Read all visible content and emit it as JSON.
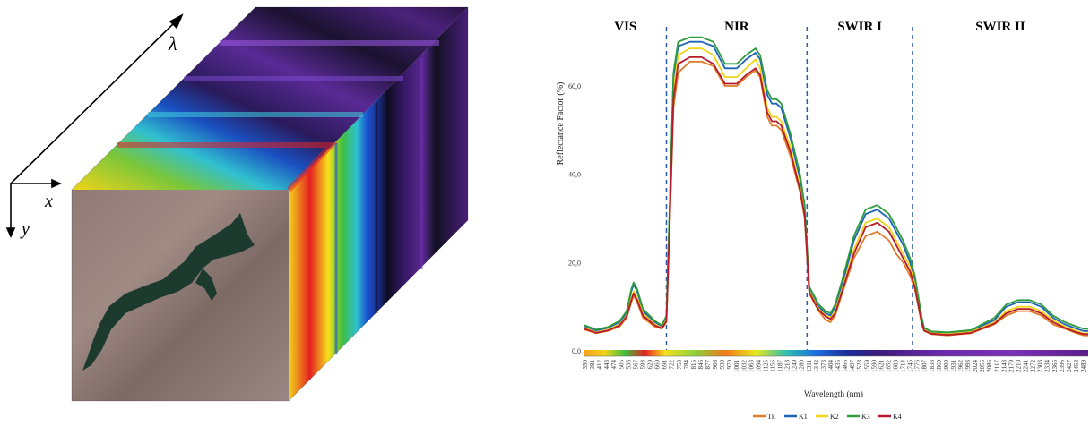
{
  "cube": {
    "axis_x": "x",
    "axis_y": "y",
    "axis_lambda": "λ"
  },
  "chart_data": {
    "type": "line",
    "title": "",
    "xlabel": "Wavelength  (nm)",
    "ylabel": "Reflectance Factor (%)",
    "ylim": [
      0,
      75
    ],
    "y_ticks": [
      {
        "value": 0,
        "label": "0,0"
      },
      {
        "value": 20,
        "label": "20,0"
      },
      {
        "value": 40,
        "label": "40,0"
      },
      {
        "value": 60,
        "label": "60,0"
      }
    ],
    "xlim": [
      350,
      2500
    ],
    "x_tick_labels": [
      "350",
      "381",
      "412",
      "443",
      "474",
      "505",
      "536",
      "567",
      "598",
      "629",
      "660",
      "691",
      "722",
      "753",
      "784",
      "815",
      "846",
      "877",
      "908",
      "939",
      "970",
      "1001",
      "1032",
      "1063",
      "1094",
      "1125",
      "1156",
      "1187",
      "1218",
      "1249",
      "1280",
      "1311",
      "1342",
      "1373",
      "1404",
      "1435",
      "1466",
      "1497",
      "1528",
      "1559",
      "1590",
      "1621",
      "1652",
      "1683",
      "1714",
      "1745",
      "1776",
      "1807",
      "1838",
      "1869",
      "1900",
      "1931",
      "1962",
      "1993",
      "2024",
      "2055",
      "2086",
      "2117",
      "2148",
      "2179",
      "2210",
      "2241",
      "2272",
      "2303",
      "2334",
      "2365",
      "2396",
      "2427",
      "2458",
      "2489"
    ],
    "regions": [
      {
        "label": "VIS",
        "start": 350,
        "end": 700
      },
      {
        "label": "NIR",
        "start": 700,
        "end": 1300
      },
      {
        "label": "SWIR I",
        "start": 1300,
        "end": 1750
      },
      {
        "label": "SWIR II",
        "start": 1750,
        "end": 2500
      }
    ],
    "boundaries": [
      700,
      1300,
      1750
    ],
    "grid": false,
    "legend_position": "bottom-center",
    "x": [
      350,
      400,
      450,
      500,
      530,
      550,
      560,
      575,
      600,
      650,
      680,
      700,
      715,
      730,
      750,
      800,
      850,
      900,
      950,
      1000,
      1040,
      1080,
      1100,
      1130,
      1150,
      1170,
      1190,
      1230,
      1270,
      1290,
      1310,
      1350,
      1380,
      1400,
      1420,
      1450,
      1500,
      1550,
      1600,
      1650,
      1680,
      1710,
      1740,
      1760,
      1790,
      1800,
      1830,
      1900,
      2000,
      2100,
      2150,
      2200,
      2250,
      2300,
      2350,
      2400,
      2450,
      2480,
      2500
    ],
    "series": [
      {
        "name": "Tk",
        "color": "#e07b28",
        "values": [
          4.8,
          4.0,
          4.5,
          5.5,
          7.5,
          11.0,
          12.5,
          11.0,
          7.5,
          5.5,
          5.0,
          6.5,
          30,
          55,
          63,
          65.5,
          65.5,
          64.5,
          60,
          60,
          62,
          63.5,
          62,
          53,
          51,
          51,
          50,
          44,
          36,
          30,
          13,
          9,
          7,
          6.5,
          8,
          13,
          21,
          26,
          27,
          25,
          22,
          20,
          17,
          14,
          6,
          4.5,
          3.8,
          3.5,
          4,
          6,
          8,
          9,
          9,
          8,
          6,
          5,
          4,
          3.5,
          3.5
        ]
      },
      {
        "name": "K1",
        "color": "#1f63b5",
        "values": [
          5.6,
          4.6,
          5.2,
          6.5,
          8.5,
          13.5,
          15.0,
          13.5,
          9.0,
          6.5,
          5.6,
          7.5,
          34,
          62,
          69,
          70,
          70,
          69,
          64,
          64,
          66,
          67.5,
          66,
          58,
          56,
          56,
          55,
          48,
          39,
          32,
          14,
          10,
          8.5,
          8,
          10,
          15,
          25,
          31,
          32,
          30,
          27,
          24,
          20,
          16,
          7,
          5,
          4.2,
          4,
          4.5,
          7,
          10,
          11,
          11,
          10,
          7.5,
          6,
          5,
          4.5,
          4.5
        ]
      },
      {
        "name": "K2",
        "color": "#f2d419",
        "values": [
          5.2,
          4.2,
          4.8,
          6.0,
          8.0,
          12.0,
          13.5,
          12.0,
          8.5,
          6.0,
          5.2,
          7.0,
          32,
          59,
          67,
          68.5,
          68.5,
          67,
          62,
          62,
          64,
          66,
          64,
          55,
          53,
          53,
          52,
          46,
          37,
          31,
          13.5,
          9.5,
          8,
          7.5,
          9,
          14,
          23,
          29,
          30,
          28,
          25,
          22,
          19,
          15,
          6.5,
          4.8,
          4,
          3.8,
          4.3,
          6.5,
          9,
          10,
          10,
          9,
          7,
          5.5,
          4.5,
          4,
          4
        ]
      },
      {
        "name": "K3",
        "color": "#2f9d3f",
        "values": [
          5.8,
          4.8,
          5.4,
          6.8,
          9.0,
          14.0,
          15.5,
          14.0,
          9.5,
          6.8,
          5.8,
          8.0,
          35,
          63,
          70,
          71,
          71,
          70,
          65,
          65,
          67,
          68.5,
          67,
          59,
          57,
          57,
          56,
          49,
          40,
          33,
          14.5,
          10.5,
          9,
          8.5,
          10.5,
          16,
          26,
          32,
          33,
          31,
          28,
          25,
          21,
          17,
          7.5,
          5.2,
          4.4,
          4.2,
          4.7,
          7.5,
          10.5,
          11.5,
          11.5,
          10.5,
          8,
          6.5,
          5.5,
          5,
          5
        ]
      },
      {
        "name": "K4",
        "color": "#b51c2c",
        "values": [
          5.0,
          4.1,
          4.6,
          5.8,
          7.8,
          11.5,
          13.0,
          11.5,
          8.0,
          5.8,
          5.1,
          6.8,
          31,
          57,
          65,
          66.5,
          66.5,
          65,
          60.5,
          60.5,
          62.5,
          64,
          62.5,
          54,
          52,
          52,
          51,
          45,
          36.5,
          30.5,
          13.2,
          9.2,
          7.8,
          7.2,
          8.5,
          13.5,
          22,
          28,
          29,
          27,
          24,
          21,
          18,
          14.5,
          6.3,
          4.6,
          3.9,
          3.6,
          4.1,
          6.2,
          8.5,
          9.5,
          9.5,
          8.5,
          6.5,
          5.2,
          4.2,
          3.8,
          3.8
        ]
      }
    ]
  }
}
